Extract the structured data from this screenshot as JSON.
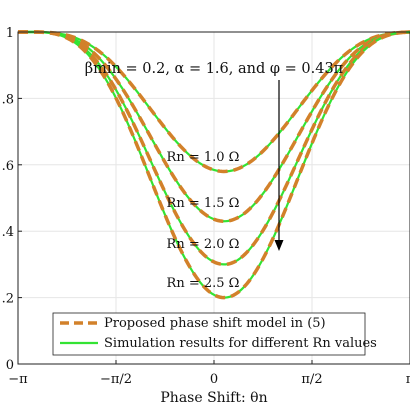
{
  "chart_data": {
    "type": "line",
    "xlabel": "Phase Shift: θn",
    "ylabel": "",
    "xlim": [
      -3.1416,
      3.1416
    ],
    "ylim": [
      0,
      1
    ],
    "grid": true,
    "legend_placement": "bottom-left",
    "xtick_labels": [
      "−π",
      "−π/2",
      "0",
      "π/2",
      "π"
    ],
    "ytick_labels": [
      "0",
      ".2",
      ".4",
      ".6",
      ".8",
      "1"
    ],
    "annotation": "βmin = 0.2, α = 1.6, and φ = 0.43π",
    "params": {
      "beta_min": 0.2,
      "alpha": 1.6,
      "phi_over_pi": 0.43
    },
    "legend": [
      "Proposed phase shift model in (5)",
      "Simulation results for different Rn values"
    ],
    "colors": {
      "model": "#d2812a",
      "simulation": "#33e333",
      "grid": "#e6e6e6",
      "axis": "#222222"
    },
    "curve_labels": [
      "Rn = 1.0 Ω",
      "Rn = 1.5 Ω",
      "Rn = 2.0 Ω",
      "Rn = 2.5 Ω"
    ],
    "series": [
      {
        "name": "Rn = 1.0 Ω",
        "min": 0.58
      },
      {
        "name": "Rn = 1.5 Ω",
        "min": 0.43
      },
      {
        "name": "Rn = 2.0 Ω",
        "min": 0.3
      },
      {
        "name": "Rn = 2.5 Ω",
        "min": 0.2
      }
    ]
  }
}
